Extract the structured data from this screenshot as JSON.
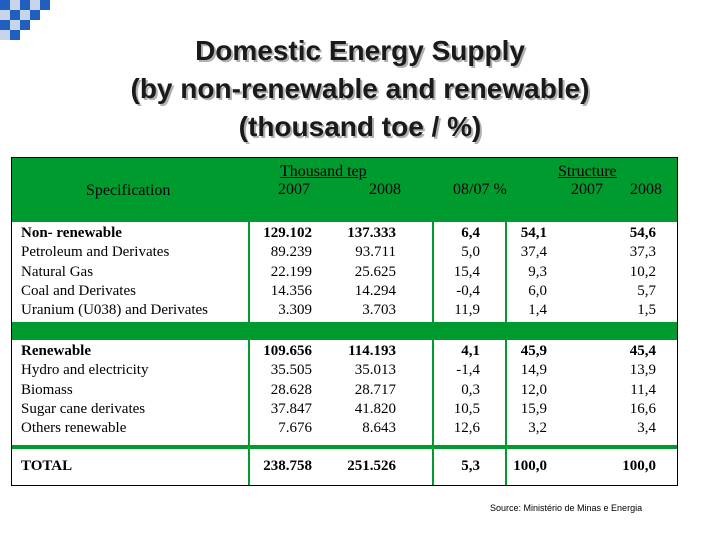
{
  "title": {
    "line1": "Domestic Energy Supply",
    "line2": "(by non-renewable and renewable)",
    "line3": "(thousand toe / %)"
  },
  "header": {
    "specification": "Specification",
    "thousand_tep": "Thousand tep",
    "year_2007": "2007",
    "year_2008": "2008",
    "change": "08/07 %",
    "structure": "Structure",
    "struct_2007": "2007",
    "struct_2008": "2008"
  },
  "non_renewable": [
    {
      "name": "Non- renewable",
      "v2007": "129.102",
      "v2008": "137.333",
      "change": "6,4",
      "s2007": "54,1",
      "s2008": "54,6"
    },
    {
      "name": "Petroleum and Derivates",
      "v2007": "89.239",
      "v2008": "93.711",
      "change": "5,0",
      "s2007": "37,4",
      "s2008": "37,3"
    },
    {
      "name": "Natural Gas",
      "v2007": "22.199",
      "v2008": "25.625",
      "change": "15,4",
      "s2007": "9,3",
      "s2008": "10,2"
    },
    {
      "name": "Coal and Derivates",
      "v2007": "14.356",
      "v2008": "14.294",
      "change": "-0,4",
      "s2007": "6,0",
      "s2008": "5,7"
    },
    {
      "name": "Uranium (U038) and Derivates",
      "v2007": "3.309",
      "v2008": "3.703",
      "change": "11,9",
      "s2007": "1,4",
      "s2008": "1,5"
    }
  ],
  "renewable": [
    {
      "name": "Renewable",
      "v2007": "109.656",
      "v2008": "114.193",
      "change": "4,1",
      "s2007": "45,9",
      "s2008": "45,4"
    },
    {
      "name": "Hydro and electricity",
      "v2007": "35.505",
      "v2008": "35.013",
      "change": "-1,4",
      "s2007": "14,9",
      "s2008": "13,9"
    },
    {
      "name": "Biomass",
      "v2007": "28.628",
      "v2008": "28.717",
      "change": "0,3",
      "s2007": "12,0",
      "s2008": "11,4"
    },
    {
      "name": "Sugar cane derivates",
      "v2007": "37.847",
      "v2008": "41.820",
      "change": "10,5",
      "s2007": "15,9",
      "s2008": "16,6"
    },
    {
      "name": "Others renewable",
      "v2007": "7.676",
      "v2008": "8.643",
      "change": "12,6",
      "s2007": "3,2",
      "s2008": "3,4"
    }
  ],
  "total": {
    "name": "TOTAL",
    "v2007": "238.758",
    "v2008": "251.526",
    "change": "5,3",
    "s2007": "100,0",
    "s2008": "100,0"
  },
  "source": "Source: Ministério de Minas e Energia",
  "colors": {
    "header_green": "#009b2f",
    "deco_blue": "#1f5fbf"
  }
}
